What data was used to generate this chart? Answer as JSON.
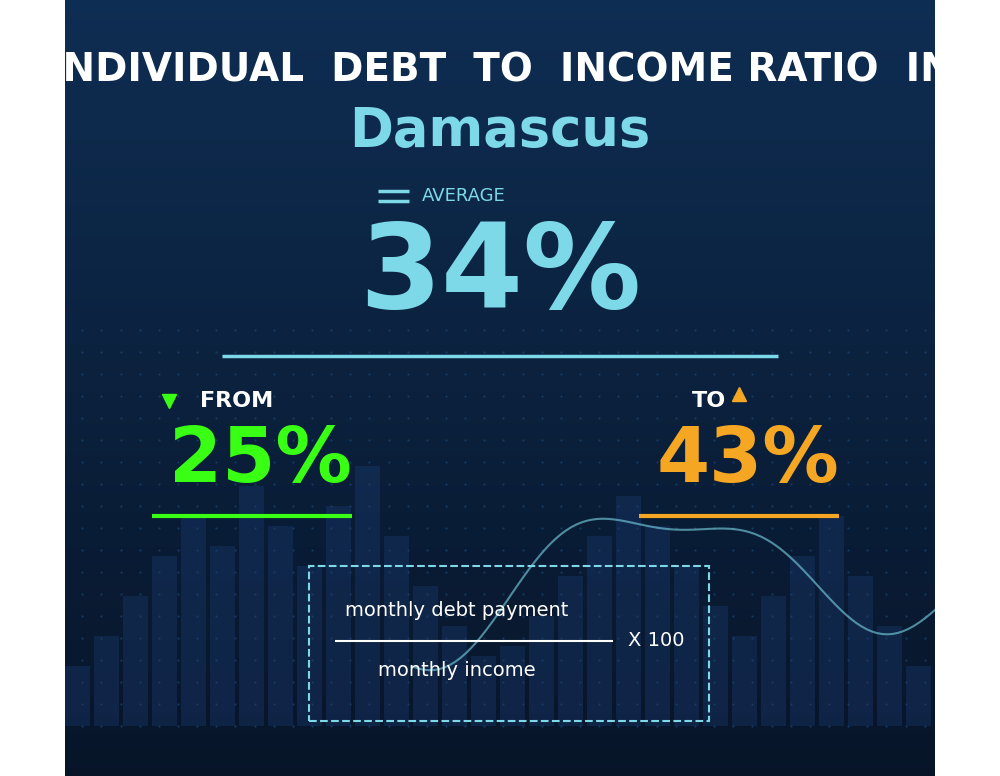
{
  "title_line1": "INDIVIDUAL  DEBT  TO  INCOME RATIO  IN",
  "title_line2": "Damascus",
  "average_label": "AVERAGE",
  "average_value": "34%",
  "from_label": "FROM",
  "from_value": "25%",
  "to_label": "TO",
  "to_value": "43%",
  "formula_numerator": "monthly debt payment",
  "formula_denominator": "monthly income",
  "formula_multiplier": "X 100",
  "bg_color_top": "#0d2a4e",
  "bg_color_bottom": "#0a1e3c",
  "title1_color": "#ffffff",
  "title2_color": "#7dd8e8",
  "average_label_color": "#7dd8e8",
  "average_value_color": "#7dd8e8",
  "from_color": "#ffffff",
  "from_value_color": "#39ff14",
  "to_color": "#ffffff",
  "to_value_color": "#f5a623",
  "divider_color": "#7dd8e8",
  "from_underline_color": "#39ff14",
  "to_underline_color": "#f5a623",
  "formula_color": "#ffffff",
  "formula_box_color": "#7dd8e8",
  "background_gradient_top": "#0e2d52",
  "background_gradient_bottom": "#071428"
}
